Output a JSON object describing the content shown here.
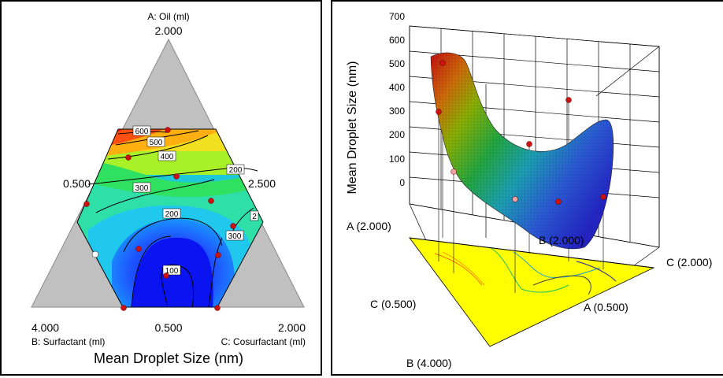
{
  "chart_data": [
    {
      "type": "contour",
      "subtype": "ternary mixture contour",
      "title": "Mean Droplet Size (nm)",
      "vertices": {
        "top": {
          "label": "A: Oil (ml)",
          "value": "2.000"
        },
        "bottom_left": {
          "label": "B: Surfactant (ml)",
          "value": "4.000"
        },
        "bottom_right": {
          "label": "C: Cosurfactant (ml)",
          "value": "2.000"
        }
      },
      "edge_labels": {
        "left": "0.500",
        "right": "2.500",
        "bottom": "0.500"
      },
      "contour_levels": [
        {
          "label": "600"
        },
        {
          "label": "500"
        },
        {
          "label": "400"
        },
        {
          "label": "300"
        },
        {
          "label": "200"
        },
        {
          "label": "100"
        },
        {
          "label": "200"
        },
        {
          "label": "300"
        },
        {
          "label": "2"
        }
      ],
      "colors": {
        "low": "#0022ff",
        "mid": "#22dd33",
        "high": "#ff1100",
        "excluded": "#c0c0c0",
        "points": "#cc1111"
      }
    },
    {
      "type": "surface3d",
      "zlabel": "Mean Droplet Size (nm)",
      "z_ticks": [
        "0",
        "100",
        "200",
        "300",
        "400",
        "500",
        "600",
        "700"
      ],
      "axis_labels": [
        "A (2.000)",
        "B (2.000)",
        "C (2.000)",
        "C (0.500)",
        "A (0.500)",
        "B (4.000)"
      ],
      "floor_color": "#ffff00"
    }
  ]
}
